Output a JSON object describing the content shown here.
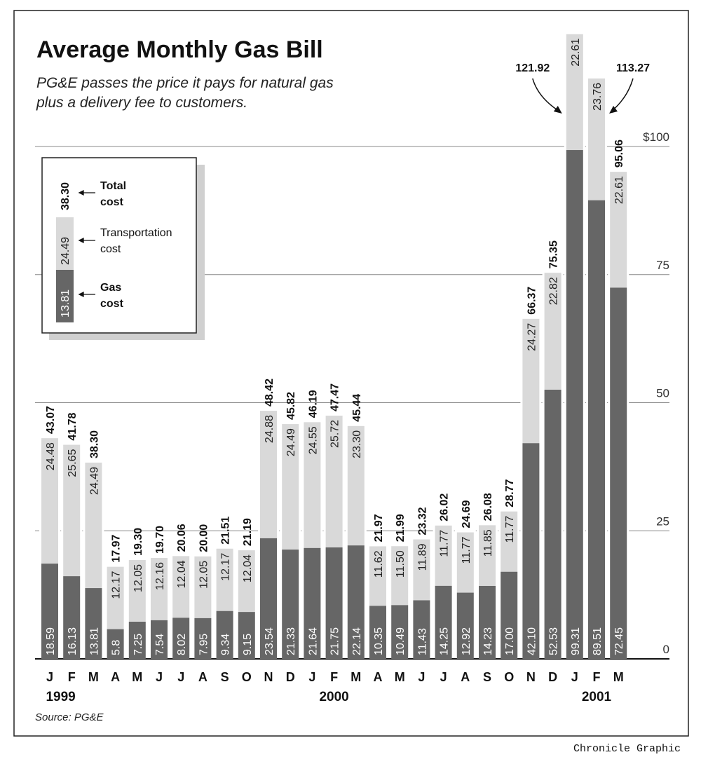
{
  "chart_data": {
    "type": "bar",
    "stacked": true,
    "title": "Average Monthly Gas Bill",
    "subtitle": [
      "PG&E passes the price it pays for natural gas",
      "plus a delivery fee to customers."
    ],
    "categories": [
      "J",
      "F",
      "M",
      "A",
      "M",
      "J",
      "J",
      "A",
      "S",
      "O",
      "N",
      "D",
      "J",
      "F",
      "M",
      "A",
      "M",
      "J",
      "J",
      "A",
      "S",
      "O",
      "N",
      "D",
      "J",
      "F",
      "M"
    ],
    "year_labels": [
      {
        "label": "1999",
        "at_index": 0.5
      },
      {
        "label": "2000",
        "at_index": 13
      },
      {
        "label": "2001",
        "at_index": 25
      }
    ],
    "series": [
      {
        "name": "Gas cost",
        "color": "#666666",
        "label_color": "#ffffff",
        "values": [
          "18.59",
          "16.13",
          "13.81",
          "5.8",
          "7.25",
          "7.54",
          "8.02",
          "7.95",
          "9.34",
          "9.15",
          "23.54",
          "21.33",
          "21.64",
          "21.75",
          "22.14",
          "10.35",
          "10.49",
          "11.43",
          "14.25",
          "12.92",
          "14.23",
          "17.00",
          "42.10",
          "52.53",
          "99.31",
          "89.51",
          "72.45"
        ]
      },
      {
        "name": "Transportation cost",
        "color": "#d9d9d9",
        "label_color": "#222222",
        "values": [
          "24.48",
          "25.65",
          "24.49",
          "12.17",
          "12.05",
          "12.16",
          "12.04",
          "12.05",
          "12.17",
          "12.04",
          "24.88",
          "24.49",
          "24.55",
          "25.72",
          "23.30",
          "11.62",
          "11.50",
          "11.89",
          "11.77",
          "11.77",
          "11.85",
          "11.77",
          "24.27",
          "22.82",
          "22.61",
          "23.76",
          "22.61"
        ]
      }
    ],
    "totals": [
      "43.07",
      "41.78",
      "38.30",
      "17.97",
      "19.30",
      "19.70",
      "20.06",
      "20.00",
      "21.51",
      "21.19",
      "48.42",
      "45.82",
      "46.19",
      "47.47",
      "45.44",
      "21.97",
      "21.99",
      "23.32",
      "26.02",
      "24.69",
      "26.08",
      "28.77",
      "66.37",
      "75.35",
      "121.92",
      "113.27",
      "95.06"
    ],
    "arrow_annotated_totals": [
      24,
      25
    ],
    "ylim": [
      0,
      100
    ],
    "yticks": [
      0,
      25,
      50,
      75,
      100
    ],
    "ytick_labels": [
      "0",
      "25",
      "50",
      "75",
      "$100"
    ],
    "grid": true,
    "legend": {
      "placement": "top-left",
      "example_values": {
        "total": "38.30",
        "transport": "24.49",
        "gas": "13.81"
      },
      "total_label": [
        "Total",
        "cost"
      ],
      "transport_label": [
        "Transportation",
        "cost"
      ],
      "gas_label": [
        "Gas",
        "cost"
      ]
    },
    "source": "Source: PG&E",
    "credit": "Chronicle Graphic"
  }
}
